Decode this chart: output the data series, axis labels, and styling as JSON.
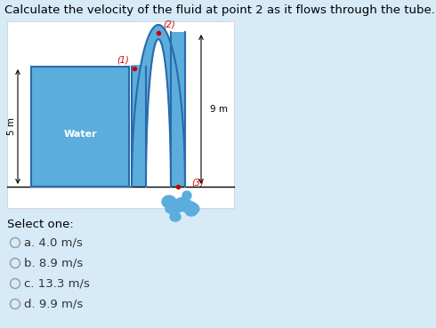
{
  "title": "Calculate the velocity of the fluid at point 2 as it flows through the tube.",
  "bg_color": "#d6eaf8",
  "water_color": "#5baddc",
  "tube_color": "#5baddc",
  "tube_edge": "#2a6aad",
  "water_label": "Water",
  "dim_5m": "5 m",
  "dim_9m": "9 m",
  "label_1": "(1)",
  "label_2": "(2)",
  "label_3": "(3)",
  "label_color": "#cc0000",
  "select_text": "Select one:",
  "options": [
    "a. 4.0 m/s",
    "b. 8.9 m/s",
    "c. 13.3 m/s",
    "d. 9.9 m/s"
  ],
  "title_fontsize": 9.5,
  "option_fontsize": 10
}
